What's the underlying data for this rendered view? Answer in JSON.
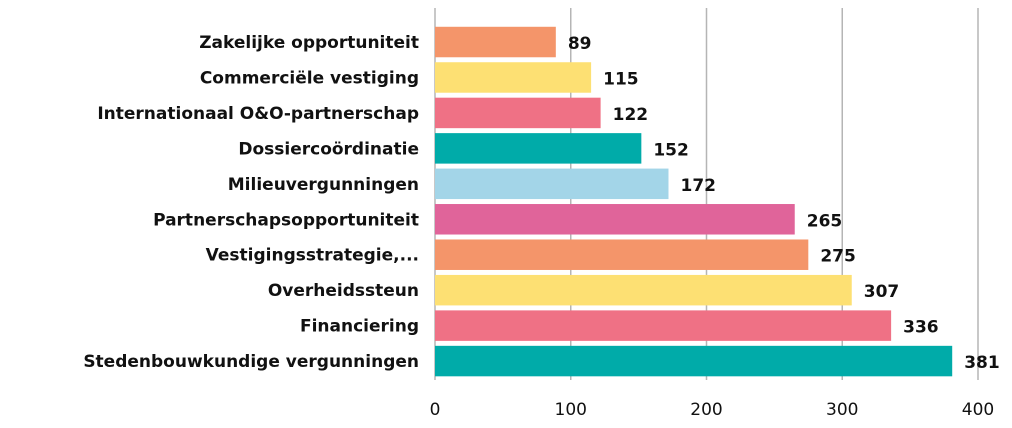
{
  "chart_data": {
    "type": "hbar",
    "categories": [
      "Zakelijke opportuniteit",
      "Commerciële vestiging",
      "Internationaal O&O-partnerschap",
      "Dossiercoördinatie",
      "Milieuvergunningen",
      "Partnerschapsopportuniteit",
      "Vestigingsstrategie,...",
      "Overheidssteun",
      "Financiering",
      "Stedenbouwkundige vergunningen"
    ],
    "values": [
      89,
      115,
      122,
      152,
      172,
      265,
      275,
      307,
      336,
      381
    ],
    "colors": [
      "#f4956a",
      "#fde073",
      "#ef7185",
      "#00aba9",
      "#a3d5e8",
      "#e0649a",
      "#f4956a",
      "#fde073",
      "#ef7185",
      "#00aba9"
    ],
    "xlim": [
      0,
      400
    ],
    "xticks": [
      0,
      100,
      200,
      300,
      400
    ],
    "grid": true
  }
}
